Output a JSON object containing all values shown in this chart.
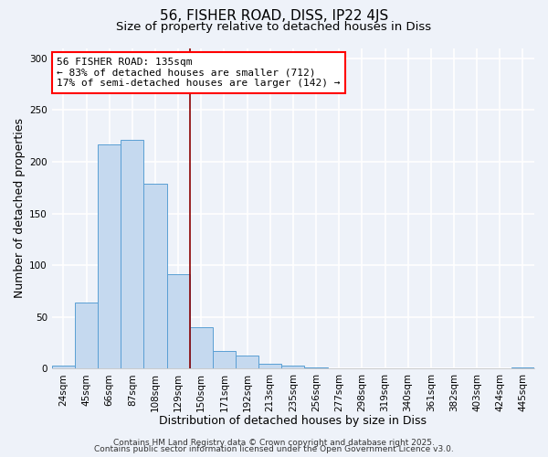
{
  "title": "56, FISHER ROAD, DISS, IP22 4JS",
  "subtitle": "Size of property relative to detached houses in Diss",
  "xlabel": "Distribution of detached houses by size in Diss",
  "ylabel": "Number of detached properties",
  "bar_labels": [
    "24sqm",
    "45sqm",
    "66sqm",
    "87sqm",
    "108sqm",
    "129sqm",
    "150sqm",
    "171sqm",
    "192sqm",
    "213sqm",
    "235sqm",
    "256sqm",
    "277sqm",
    "298sqm",
    "319sqm",
    "340sqm",
    "361sqm",
    "382sqm",
    "403sqm",
    "424sqm",
    "445sqm"
  ],
  "bar_values": [
    3,
    64,
    217,
    221,
    179,
    91,
    40,
    17,
    13,
    5,
    3,
    1,
    0,
    0,
    0,
    0,
    0,
    0,
    0,
    0,
    1
  ],
  "bar_color": "#c5d9ef",
  "bar_edge_color": "#5a9fd4",
  "vline_x": 5.5,
  "vline_color": "#8b0000",
  "annotation_line1": "56 FISHER ROAD: 135sqm",
  "annotation_line2": "← 83% of detached houses are smaller (712)",
  "annotation_line3": "17% of semi-detached houses are larger (142) →",
  "annotation_box_color": "white",
  "annotation_box_edge_color": "red",
  "ylim": [
    0,
    310
  ],
  "yticks": [
    0,
    50,
    100,
    150,
    200,
    250,
    300
  ],
  "footer1": "Contains HM Land Registry data © Crown copyright and database right 2025.",
  "footer2": "Contains public sector information licensed under the Open Government Licence v3.0.",
  "bg_color": "#eef2f9",
  "grid_color": "white",
  "title_fontsize": 11,
  "subtitle_fontsize": 9.5,
  "xlabel_fontsize": 9,
  "ylabel_fontsize": 9,
  "tick_fontsize": 7.5,
  "annotation_fontsize": 8,
  "footer_fontsize": 6.5
}
